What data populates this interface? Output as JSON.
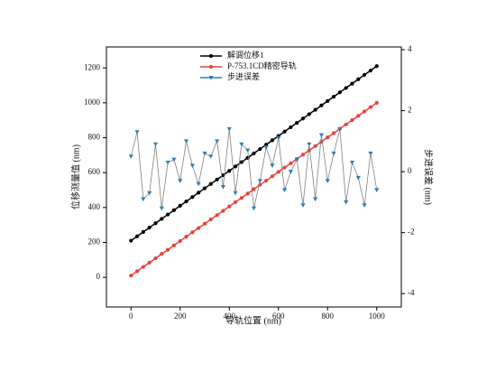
{
  "chart_data": {
    "type": "line",
    "x": [
      0,
      25,
      50,
      75,
      100,
      125,
      150,
      175,
      200,
      225,
      250,
      275,
      300,
      325,
      350,
      375,
      400,
      425,
      450,
      475,
      500,
      525,
      550,
      575,
      600,
      625,
      650,
      675,
      700,
      725,
      750,
      775,
      800,
      825,
      850,
      875,
      900,
      925,
      950,
      975,
      1000
    ],
    "series": [
      {
        "name": "解调位移1",
        "color": "#000000",
        "marker": "circle",
        "values": [
          210,
          235,
          260,
          285,
          310,
          335,
          360,
          385,
          410,
          435,
          460,
          485,
          510,
          535,
          560,
          585,
          610,
          635,
          660,
          685,
          710,
          735,
          760,
          785,
          810,
          835,
          860,
          885,
          910,
          935,
          960,
          985,
          1010,
          1035,
          1060,
          1085,
          1110,
          1135,
          1160,
          1185,
          1210
        ]
      },
      {
        "name": "P-753.1CD精密导轨",
        "color": "#e8413c",
        "marker": "circle",
        "values": [
          10,
          35,
          60,
          84,
          109,
          134,
          158,
          183,
          208,
          233,
          258,
          282,
          307,
          332,
          356,
          381,
          406,
          431,
          455,
          480,
          505,
          530,
          554,
          579,
          604,
          629,
          653,
          678,
          703,
          727,
          752,
          777,
          802,
          826,
          851,
          876,
          901,
          925,
          950,
          975,
          1000
        ]
      },
      {
        "name": "步进误差",
        "color": "#2f7fb5",
        "marker": "triangle-down",
        "axis": "y2",
        "line_color": "#808080",
        "values": [
          0.5,
          1.3,
          -0.9,
          -0.7,
          0.9,
          -1.2,
          0.3,
          0.4,
          -0.3,
          1.0,
          0.2,
          -0.4,
          0.6,
          0.5,
          1.0,
          -0.5,
          1.4,
          -0.7,
          0.9,
          0.7,
          -1.2,
          -0.3,
          0.8,
          0.2,
          1.1,
          -0.6,
          0.0,
          0.4,
          -1.1,
          0.9,
          -0.9,
          1.2,
          -0.3,
          0.6,
          1.4,
          -1.0,
          0.3,
          -0.2,
          -1.1,
          0.6,
          -0.6
        ]
      }
    ],
    "xlabel": "导轨位置 (nm)",
    "ylabel": "位移测量值 (nm)",
    "y2label": "步进误差 (nm)",
    "xlim": [
      -100,
      1100
    ],
    "xticks": [
      0,
      200,
      400,
      600,
      800,
      1000
    ],
    "ylim": [
      -170,
      1320
    ],
    "yticks": [
      0,
      200,
      400,
      600,
      800,
      1000,
      1200
    ],
    "y2lim": [
      -4.44,
      4.09
    ],
    "y2ticks": [
      -4,
      -2,
      0,
      2,
      4
    ],
    "legend": "top",
    "grid": false
  }
}
